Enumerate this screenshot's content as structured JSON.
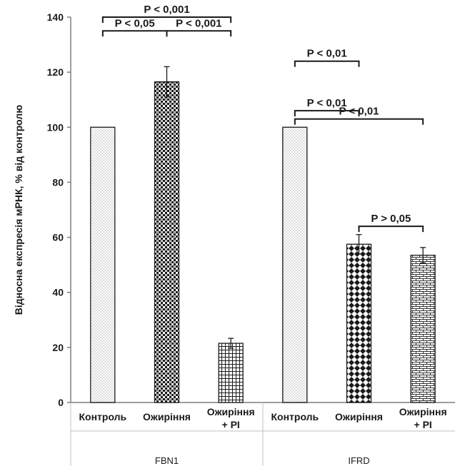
{
  "chart_data": {
    "type": "bar",
    "ylabel": "Відносна експресія мРНК, % від контролю",
    "ylim": [
      0,
      140
    ],
    "yticks": [
      "0",
      "20",
      "40",
      "60",
      "80",
      "100",
      "120",
      "140"
    ],
    "groups": [
      {
        "name": "FBN1",
        "categories": [
          [
            "Контроль"
          ],
          [
            "Ожиріння"
          ],
          [
            "Ожиріння",
            "+ РІ"
          ]
        ],
        "values": [
          100,
          116.5,
          21.5
        ],
        "errors": [
          0,
          5.5,
          1.8
        ]
      },
      {
        "name": "IFRD",
        "categories": [
          [
            "Контроль"
          ],
          [
            "Ожиріння"
          ],
          [
            "Ожиріння",
            "+ РІ"
          ]
        ],
        "values": [
          100,
          57.5,
          53.5
        ],
        "errors": [
          0,
          3.5,
          2.8
        ]
      }
    ],
    "annotations": [
      {
        "text": "P < 0,001",
        "group": 0,
        "from": 0,
        "to": 2,
        "level": 140
      },
      {
        "text": "P < 0,05",
        "group": 0,
        "from": 0,
        "to": 1,
        "level": 135
      },
      {
        "text": "P < 0,001",
        "group": 0,
        "from": 1,
        "to": 2,
        "level": 135
      },
      {
        "text": "P < 0,01",
        "group": 1,
        "from": 0,
        "to": 1,
        "level": 124
      },
      {
        "text": "P < 0,01",
        "group": 1,
        "from": 0,
        "to": 1,
        "level": 106
      },
      {
        "text": "P < 0,01",
        "group": 1,
        "from": 0,
        "to": 2,
        "level": 103
      },
      {
        "text": "P > 0,05",
        "group": 1,
        "from": 1,
        "to": 2,
        "level": 64
      }
    ],
    "patterns": [
      "dots-sparse",
      "checker",
      "grid",
      "dots-sparse",
      "diamond",
      "brick"
    ],
    "grid": false,
    "legend": "none"
  }
}
